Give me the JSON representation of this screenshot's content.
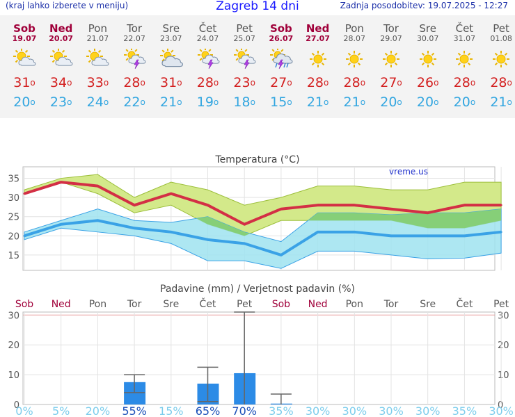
{
  "header": {
    "menu_hint": "(kraj lahko izberete v meniju)",
    "title": "Zagreb 14 dni",
    "updated": "Zadnja posodobitev: 19.07.2025 - 12:27"
  },
  "days": [
    {
      "name": "Sob",
      "date": "19.07",
      "weekend": true,
      "icon": "sun-partly-cloudy-icon",
      "tmax": "31",
      "tmin": "20"
    },
    {
      "name": "Ned",
      "date": "20.07",
      "weekend": true,
      "icon": "sun-partly-cloudy-icon",
      "tmax": "34",
      "tmin": "23"
    },
    {
      "name": "Pon",
      "date": "21.07",
      "weekend": false,
      "icon": "sun-partly-cloudy-icon",
      "tmax": "33",
      "tmin": "24"
    },
    {
      "name": "Tor",
      "date": "22.07",
      "weekend": false,
      "icon": "sun-cloud-thunder-icon",
      "tmax": "28",
      "tmin": "22"
    },
    {
      "name": "Sre",
      "date": "23.07",
      "weekend": false,
      "icon": "mostly-cloudy-icon",
      "tmax": "31",
      "tmin": "21"
    },
    {
      "name": "Čet",
      "date": "24.07",
      "weekend": false,
      "icon": "sun-cloud-thunder-icon",
      "tmax": "28",
      "tmin": "19"
    },
    {
      "name": "Pet",
      "date": "25.07",
      "weekend": false,
      "icon": "sun-cloud-thunder-icon",
      "tmax": "23",
      "tmin": "18"
    },
    {
      "name": "Sob",
      "date": "26.07",
      "weekend": true,
      "icon": "sun-cloud-rain-thunder-icon",
      "tmax": "27",
      "tmin": "15"
    },
    {
      "name": "Ned",
      "date": "27.07",
      "weekend": true,
      "icon": "sun-icon",
      "tmax": "28",
      "tmin": "21"
    },
    {
      "name": "Pon",
      "date": "28.07",
      "weekend": false,
      "icon": "sun-icon",
      "tmax": "28",
      "tmin": "21"
    },
    {
      "name": "Tor",
      "date": "29.07",
      "weekend": false,
      "icon": "sun-icon",
      "tmax": "27",
      "tmin": "20"
    },
    {
      "name": "Sre",
      "date": "30.07",
      "weekend": false,
      "icon": "sun-icon",
      "tmax": "26",
      "tmin": "20"
    },
    {
      "name": "Čet",
      "date": "31.07",
      "weekend": false,
      "icon": "sun-icon",
      "tmax": "28",
      "tmin": "20"
    },
    {
      "name": "Pet",
      "date": "01.08",
      "weekend": false,
      "icon": "sun-icon",
      "tmax": "28",
      "tmin": "21"
    }
  ],
  "colors": {
    "tmax": "#d32f45",
    "tmin": "#3aa2e6",
    "tmax_band": "#d3e98a",
    "tmin_band": "#9fe3f0",
    "overlap": "#86cf78",
    "bar": "#2c8be6",
    "weekend": "#a0003a",
    "prob_high": "#1a4fb8",
    "prob_low": "#7ccdec"
  },
  "chart_data": [
    {
      "type": "line",
      "title": "Temperatura (°C)",
      "watermark": "vreme.us",
      "ylim": [
        11,
        38
      ],
      "yticks": [
        15,
        20,
        25,
        30,
        35
      ],
      "grid": true,
      "x": [
        0,
        1,
        2,
        3,
        4,
        5,
        6,
        7,
        8,
        9,
        10,
        11,
        12,
        13
      ],
      "series": [
        {
          "name": "max",
          "values": [
            31,
            34,
            33,
            28,
            31,
            28,
            23,
            27,
            28,
            28,
            27,
            26,
            28,
            28
          ],
          "band_low": [
            31,
            34,
            31,
            26,
            28,
            23,
            20,
            24,
            24,
            24,
            24,
            22,
            22,
            24
          ],
          "band_high": [
            32,
            35,
            36,
            30,
            34,
            32,
            28,
            30,
            33,
            33,
            32,
            32,
            34,
            34
          ]
        },
        {
          "name": "min",
          "values": [
            20,
            23,
            24,
            22,
            21,
            19,
            18,
            15,
            21,
            21,
            20,
            20,
            20,
            21
          ],
          "band_low": [
            19,
            22,
            21,
            20,
            18,
            13.5,
            13.5,
            11.5,
            16,
            16,
            15,
            14,
            14.2,
            15.5
          ],
          "band_high": [
            21,
            24,
            27,
            24,
            23.5,
            25,
            21,
            18.5,
            26,
            26,
            25.5,
            26,
            26,
            27
          ]
        }
      ]
    },
    {
      "type": "bar",
      "title": "Padavine (mm) / Verjetnost padavin (%)",
      "ylim": [
        0,
        31
      ],
      "yticks": [
        0,
        10,
        20,
        30
      ],
      "categories": [
        "Sob",
        "Ned",
        "Pon",
        "Tor",
        "Sre",
        "Čet",
        "Pet",
        "Sob",
        "Ned",
        "Pon",
        "Tor",
        "Sre",
        "Čet",
        "Pet"
      ],
      "weekend": [
        true,
        true,
        false,
        false,
        false,
        false,
        false,
        true,
        true,
        false,
        false,
        false,
        false,
        false
      ],
      "values": [
        0,
        0,
        0,
        7.5,
        0,
        7,
        10.5,
        0.3,
        0,
        0,
        0,
        0,
        0,
        0
      ],
      "err_low": [
        null,
        null,
        null,
        4,
        null,
        1,
        0,
        0,
        null,
        null,
        null,
        null,
        null,
        null
      ],
      "err_high": [
        null,
        null,
        null,
        10,
        null,
        12.5,
        31,
        3.5,
        null,
        null,
        null,
        null,
        null,
        null
      ],
      "probability": [
        "0%",
        "5%",
        "20%",
        "55%",
        "15%",
        "65%",
        "70%",
        "35%",
        "30%",
        "30%",
        "30%",
        "30%",
        "35%",
        "30%"
      ],
      "prob_emphasis": [
        false,
        false,
        false,
        true,
        false,
        true,
        true,
        false,
        false,
        false,
        false,
        false,
        false,
        false
      ]
    }
  ]
}
